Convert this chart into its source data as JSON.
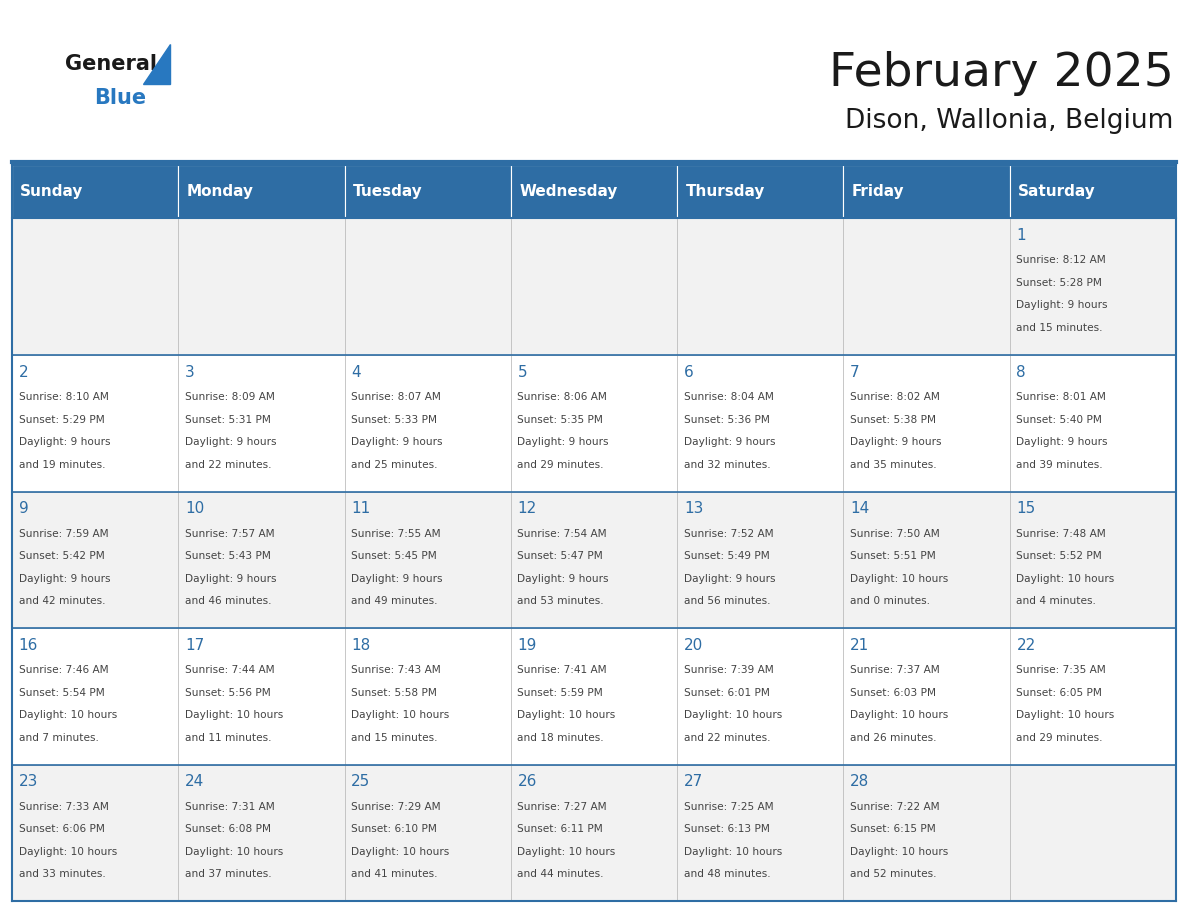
{
  "title": "February 2025",
  "subtitle": "Dison, Wallonia, Belgium",
  "days_of_week": [
    "Sunday",
    "Monday",
    "Tuesday",
    "Wednesday",
    "Thursday",
    "Friday",
    "Saturday"
  ],
  "header_bg_color": "#2E6DA4",
  "header_text_color": "#FFFFFF",
  "cell_bg_color_even": "#F2F2F2",
  "cell_bg_color_odd": "#FFFFFF",
  "border_color": "#2E6DA4",
  "day_number_color": "#2E6DA4",
  "text_color": "#444444",
  "title_color": "#1a1a1a",
  "logo_general_color": "#1a1a1a",
  "logo_blue_color": "#2878C0",
  "logo_triangle_color": "#2878C0",
  "weeks": [
    [
      {
        "day": null,
        "info": null
      },
      {
        "day": null,
        "info": null
      },
      {
        "day": null,
        "info": null
      },
      {
        "day": null,
        "info": null
      },
      {
        "day": null,
        "info": null
      },
      {
        "day": null,
        "info": null
      },
      {
        "day": 1,
        "info": "Sunrise: 8:12 AM\nSunset: 5:28 PM\nDaylight: 9 hours\nand 15 minutes."
      }
    ],
    [
      {
        "day": 2,
        "info": "Sunrise: 8:10 AM\nSunset: 5:29 PM\nDaylight: 9 hours\nand 19 minutes."
      },
      {
        "day": 3,
        "info": "Sunrise: 8:09 AM\nSunset: 5:31 PM\nDaylight: 9 hours\nand 22 minutes."
      },
      {
        "day": 4,
        "info": "Sunrise: 8:07 AM\nSunset: 5:33 PM\nDaylight: 9 hours\nand 25 minutes."
      },
      {
        "day": 5,
        "info": "Sunrise: 8:06 AM\nSunset: 5:35 PM\nDaylight: 9 hours\nand 29 minutes."
      },
      {
        "day": 6,
        "info": "Sunrise: 8:04 AM\nSunset: 5:36 PM\nDaylight: 9 hours\nand 32 minutes."
      },
      {
        "day": 7,
        "info": "Sunrise: 8:02 AM\nSunset: 5:38 PM\nDaylight: 9 hours\nand 35 minutes."
      },
      {
        "day": 8,
        "info": "Sunrise: 8:01 AM\nSunset: 5:40 PM\nDaylight: 9 hours\nand 39 minutes."
      }
    ],
    [
      {
        "day": 9,
        "info": "Sunrise: 7:59 AM\nSunset: 5:42 PM\nDaylight: 9 hours\nand 42 minutes."
      },
      {
        "day": 10,
        "info": "Sunrise: 7:57 AM\nSunset: 5:43 PM\nDaylight: 9 hours\nand 46 minutes."
      },
      {
        "day": 11,
        "info": "Sunrise: 7:55 AM\nSunset: 5:45 PM\nDaylight: 9 hours\nand 49 minutes."
      },
      {
        "day": 12,
        "info": "Sunrise: 7:54 AM\nSunset: 5:47 PM\nDaylight: 9 hours\nand 53 minutes."
      },
      {
        "day": 13,
        "info": "Sunrise: 7:52 AM\nSunset: 5:49 PM\nDaylight: 9 hours\nand 56 minutes."
      },
      {
        "day": 14,
        "info": "Sunrise: 7:50 AM\nSunset: 5:51 PM\nDaylight: 10 hours\nand 0 minutes."
      },
      {
        "day": 15,
        "info": "Sunrise: 7:48 AM\nSunset: 5:52 PM\nDaylight: 10 hours\nand 4 minutes."
      }
    ],
    [
      {
        "day": 16,
        "info": "Sunrise: 7:46 AM\nSunset: 5:54 PM\nDaylight: 10 hours\nand 7 minutes."
      },
      {
        "day": 17,
        "info": "Sunrise: 7:44 AM\nSunset: 5:56 PM\nDaylight: 10 hours\nand 11 minutes."
      },
      {
        "day": 18,
        "info": "Sunrise: 7:43 AM\nSunset: 5:58 PM\nDaylight: 10 hours\nand 15 minutes."
      },
      {
        "day": 19,
        "info": "Sunrise: 7:41 AM\nSunset: 5:59 PM\nDaylight: 10 hours\nand 18 minutes."
      },
      {
        "day": 20,
        "info": "Sunrise: 7:39 AM\nSunset: 6:01 PM\nDaylight: 10 hours\nand 22 minutes."
      },
      {
        "day": 21,
        "info": "Sunrise: 7:37 AM\nSunset: 6:03 PM\nDaylight: 10 hours\nand 26 minutes."
      },
      {
        "day": 22,
        "info": "Sunrise: 7:35 AM\nSunset: 6:05 PM\nDaylight: 10 hours\nand 29 minutes."
      }
    ],
    [
      {
        "day": 23,
        "info": "Sunrise: 7:33 AM\nSunset: 6:06 PM\nDaylight: 10 hours\nand 33 minutes."
      },
      {
        "day": 24,
        "info": "Sunrise: 7:31 AM\nSunset: 6:08 PM\nDaylight: 10 hours\nand 37 minutes."
      },
      {
        "day": 25,
        "info": "Sunrise: 7:29 AM\nSunset: 6:10 PM\nDaylight: 10 hours\nand 41 minutes."
      },
      {
        "day": 26,
        "info": "Sunrise: 7:27 AM\nSunset: 6:11 PM\nDaylight: 10 hours\nand 44 minutes."
      },
      {
        "day": 27,
        "info": "Sunrise: 7:25 AM\nSunset: 6:13 PM\nDaylight: 10 hours\nand 48 minutes."
      },
      {
        "day": 28,
        "info": "Sunrise: 7:22 AM\nSunset: 6:15 PM\nDaylight: 10 hours\nand 52 minutes."
      },
      {
        "day": null,
        "info": null
      }
    ]
  ]
}
